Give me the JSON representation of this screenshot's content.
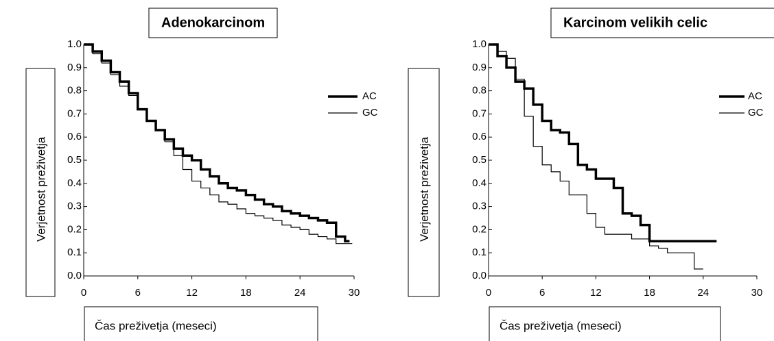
{
  "chart_data": [
    {
      "type": "line",
      "title": "Adenokarcinom",
      "x_label": "Čas preživetja (meseci)",
      "y_label": "Verjetnost preživetja",
      "xlim": [
        0,
        30
      ],
      "ylim": [
        0,
        1
      ],
      "xticks": [
        0,
        6,
        12,
        18,
        24,
        30
      ],
      "yticks": [
        {
          "value": 0,
          "label": "0.0"
        },
        0.1,
        0.2,
        0.3,
        0.4,
        0.5,
        0.6,
        0.7,
        0.8,
        0.9,
        {
          "value": 1,
          "label": "1.0"
        }
      ],
      "step": true,
      "series": [
        {
          "name": "AC",
          "color": "#000000",
          "line_width": 3.5,
          "x": [
            0,
            1,
            2,
            3,
            4,
            5,
            6,
            7,
            8,
            9,
            10,
            11,
            12,
            13,
            14,
            15,
            16,
            17,
            18,
            19,
            20,
            21,
            22,
            23,
            24,
            25,
            26,
            27,
            28,
            29,
            29.5
          ],
          "values": [
            1.0,
            0.97,
            0.93,
            0.88,
            0.84,
            0.79,
            0.72,
            0.67,
            0.63,
            0.59,
            0.55,
            0.52,
            0.5,
            0.46,
            0.43,
            0.4,
            0.38,
            0.37,
            0.35,
            0.33,
            0.31,
            0.3,
            0.28,
            0.27,
            0.26,
            0.25,
            0.24,
            0.23,
            0.17,
            0.15,
            0.15
          ]
        },
        {
          "name": "GC",
          "color": "#000000",
          "line_width": 1.2,
          "x": [
            0,
            1,
            2,
            3,
            4,
            5,
            6,
            7,
            8,
            9,
            10,
            11,
            12,
            13,
            14,
            15,
            16,
            17,
            18,
            19,
            20,
            21,
            22,
            23,
            24,
            25,
            26,
            27,
            28,
            29,
            29.8
          ],
          "values": [
            1.0,
            0.96,
            0.92,
            0.87,
            0.82,
            0.78,
            0.72,
            0.67,
            0.63,
            0.58,
            0.52,
            0.46,
            0.41,
            0.38,
            0.35,
            0.32,
            0.31,
            0.29,
            0.27,
            0.26,
            0.25,
            0.24,
            0.22,
            0.21,
            0.2,
            0.18,
            0.17,
            0.16,
            0.14,
            0.14,
            0.14
          ]
        }
      ]
    },
    {
      "type": "line",
      "title": "Karcinom velikih celic",
      "x_label": "Čas preživetja (meseci)",
      "y_label": "Verjetnost preživetja",
      "xlim": [
        0,
        30
      ],
      "ylim": [
        0,
        1
      ],
      "xticks": [
        0,
        6,
        12,
        18,
        24,
        30
      ],
      "yticks": [
        {
          "value": 0,
          "label": "0.0"
        },
        0.1,
        0.2,
        0.3,
        0.4,
        0.5,
        0.6,
        0.7,
        0.8,
        0.9,
        {
          "value": 1,
          "label": "1.0"
        }
      ],
      "step": true,
      "series": [
        {
          "name": "AC",
          "color": "#000000",
          "line_width": 3.5,
          "x": [
            0,
            1,
            2,
            3,
            4,
            5,
            6,
            7,
            8,
            9,
            10,
            11,
            12,
            13,
            14,
            15,
            16,
            17,
            18,
            19,
            25.5
          ],
          "values": [
            1.0,
            0.95,
            0.9,
            0.84,
            0.81,
            0.74,
            0.67,
            0.63,
            0.62,
            0.57,
            0.48,
            0.46,
            0.42,
            0.42,
            0.38,
            0.27,
            0.26,
            0.22,
            0.15,
            0.15,
            0.15
          ]
        },
        {
          "name": "GC",
          "color": "#000000",
          "line_width": 1.2,
          "x": [
            0,
            1,
            2,
            3,
            4,
            5,
            6,
            7,
            8,
            9,
            10,
            11,
            12,
            13,
            14,
            15,
            16,
            17,
            18,
            19,
            20,
            21,
            22,
            23,
            24
          ],
          "values": [
            1.0,
            0.97,
            0.94,
            0.85,
            0.69,
            0.56,
            0.48,
            0.45,
            0.41,
            0.35,
            0.35,
            0.27,
            0.21,
            0.18,
            0.18,
            0.18,
            0.16,
            0.16,
            0.13,
            0.12,
            0.1,
            0.1,
            0.1,
            0.03,
            0.03
          ]
        }
      ]
    }
  ]
}
